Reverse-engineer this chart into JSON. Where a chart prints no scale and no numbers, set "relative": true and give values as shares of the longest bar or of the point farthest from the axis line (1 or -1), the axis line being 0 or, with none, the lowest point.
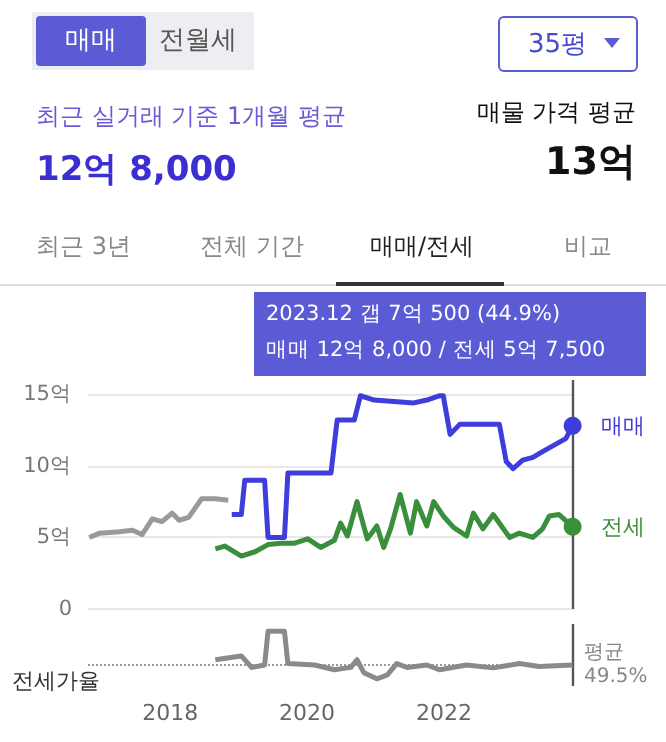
{
  "chart_data": [
    {
      "type": "line",
      "grid": "y",
      "marker": "none",
      "tick_labels": "y",
      "annotations": [
        "매매",
        "전월세",
        "35평",
        "최근 실거래 기준 1개월 평균",
        "12억 8,000",
        "매물 가격 평균",
        "13억",
        "최근 3년",
        "전체 기간",
        "매매/전세",
        "비교",
        "2023.12  갭 7억 500 (44.9%)",
        "매매 12억 8,000 / 전세 5억 7,500"
      ],
      "xlim": [
        2016.8,
        2023.9
      ],
      "xticks": [
        2018,
        2020,
        2022
      ],
      "ylim": [
        0,
        16
      ],
      "yticks": [
        0,
        {
          "value": 5,
          "label": "5억"
        },
        {
          "value": 10,
          "label": "10억"
        },
        {
          "value": 15,
          "label": "15억"
        }
      ],
      "ref_lines": [
        {
          "axis": "x",
          "value": 2023.88,
          "color": "#555555"
        }
      ],
      "series": [
        {
          "color": "#9a9a9a",
          "x": [
            2016.82,
            2016.97,
            2017.26,
            2017.45,
            2017.59,
            2017.74,
            2017.88,
            2018.03,
            2018.13,
            2018.27,
            2018.46,
            2018.66,
            2018.85
          ],
          "values": [
            5.0,
            5.3,
            5.4,
            5.5,
            5.2,
            6.3,
            6.1,
            6.7,
            6.2,
            6.4,
            7.7,
            7.7,
            7.6
          ]
        },
        {
          "name": "매매",
          "color": "#3f3ddb",
          "x": [
            2018.9,
            2019.04,
            2019.09,
            2019.38,
            2019.43,
            2019.67,
            2019.72,
            2020.35,
            2020.44,
            2020.69,
            2020.78,
            2020.98,
            2021.56,
            2021.75,
            2021.94,
            2021.99,
            2022.09,
            2022.23,
            2022.81,
            2022.91,
            2023.01,
            2023.15,
            2023.3,
            2023.44,
            2023.59,
            2023.78,
            2023.88
          ],
          "values": [
            6.6,
            6.6,
            9.0,
            9.0,
            5.0,
            5.0,
            9.5,
            9.5,
            13.2,
            13.2,
            14.9,
            14.6,
            14.4,
            14.6,
            14.9,
            14.9,
            12.2,
            12.9,
            12.9,
            10.3,
            9.8,
            10.4,
            10.6,
            11.0,
            11.4,
            11.9,
            12.8
          ]
        },
        {
          "name": "전세",
          "color": "#3a8f3c",
          "x": [
            2018.66,
            2018.8,
            2019.04,
            2019.24,
            2019.43,
            2019.62,
            2019.82,
            2020.01,
            2020.2,
            2020.4,
            2020.49,
            2020.59,
            2020.73,
            2020.88,
            2021.02,
            2021.12,
            2021.22,
            2021.36,
            2021.51,
            2021.6,
            2021.75,
            2021.85,
            2021.99,
            2022.14,
            2022.33,
            2022.43,
            2022.57,
            2022.72,
            2022.96,
            2023.1,
            2023.3,
            2023.44,
            2023.54,
            2023.68,
            2023.88
          ],
          "values": [
            4.2,
            4.4,
            3.7,
            4.0,
            4.5,
            4.6,
            4.6,
            4.9,
            4.3,
            4.8,
            6.0,
            5.1,
            7.5,
            4.9,
            5.8,
            4.3,
            5.6,
            8.0,
            5.3,
            7.5,
            5.8,
            7.5,
            6.5,
            5.7,
            5.1,
            6.7,
            5.6,
            6.6,
            5.0,
            5.3,
            5.0,
            5.6,
            6.5,
            6.6,
            5.75
          ]
        }
      ]
    },
    {
      "type": "line",
      "relative": true,
      "marker": "none",
      "tick_labels": "x",
      "grid": false,
      "ylabel": "전세가율",
      "xlim": [
        2016.8,
        2023.9
      ],
      "xticks": [
        2018,
        2020,
        2022
      ],
      "ref_lines": [
        {
          "axis": "y",
          "value": 0.29,
          "label": "평균 49.5%",
          "color": "#999999",
          "line_style": "dotted"
        },
        {
          "axis": "x",
          "value": 2023.88,
          "color": "#555555"
        }
      ],
      "series": [
        {
          "color": "#8a8a8a",
          "x": [
            2018.66,
            2019.04,
            2019.19,
            2019.38,
            2019.43,
            2019.67,
            2019.72,
            2020.11,
            2020.4,
            2020.64,
            2020.73,
            2020.83,
            2021.02,
            2021.17,
            2021.31,
            2021.46,
            2021.75,
            2021.94,
            2022.33,
            2022.72,
            2023.1,
            2023.39,
            2023.88
          ],
          "values": [
            0.4,
            0.48,
            0.24,
            0.29,
            1,
            1,
            0.32,
            0.29,
            0.19,
            0.24,
            0.4,
            0.13,
            0,
            0.08,
            0.32,
            0.24,
            0.29,
            0.19,
            0.29,
            0.23,
            0.32,
            0.26,
            0.29
          ]
        }
      ]
    }
  ]
}
